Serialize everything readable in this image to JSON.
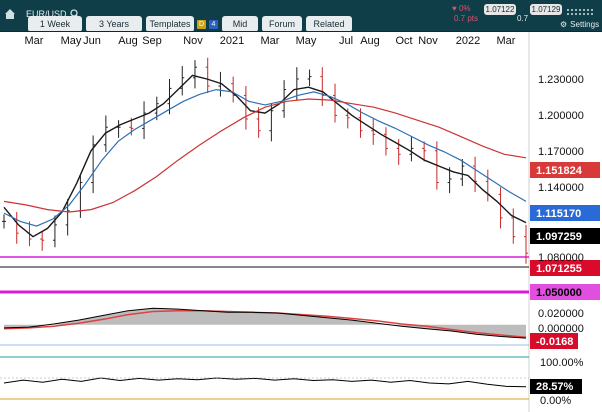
{
  "toolbar": {
    "symbol": "EUR/USD",
    "interval": "1 Week",
    "range": "3 Years",
    "templates": "Templates",
    "badge_d": "D",
    "badge_4": "4",
    "mid": "Mid",
    "forum": "Forum",
    "related": "Related",
    "change_pct": "♥ 0%",
    "change_pts": "0.7 pts",
    "sell_price": "1.07122",
    "spread": "0.7",
    "buy_price": "1.07129",
    "settings": "Settings",
    "colors": {
      "bar": "#0f3e49",
      "pill": "#e8eef0",
      "badge_d": "#c8a21a",
      "badge_4": "#2a62c4"
    }
  },
  "chart_data": [
    {
      "type": "line",
      "x_labels": [
        "Mar",
        "May",
        "Jun",
        "Aug",
        "Sep",
        "Nov",
        "2021",
        "Mar",
        "May",
        "Jul",
        "Aug",
        "Oct",
        "Nov",
        "2022",
        "Mar"
      ],
      "y_ticks": [
        "1.230000",
        "1.200000",
        "1.170000",
        "1.140000"
      ],
      "ylim": [
        1.055,
        1.247
      ],
      "series": [
        {
          "name": "",
          "color": "#000000",
          "values": [
            1.098,
            1.088,
            1.083,
            1.082,
            1.095,
            1.107,
            1.131,
            1.163,
            1.178,
            1.178,
            1.177,
            1.19,
            1.198,
            1.211,
            1.22,
            1.229,
            1.213,
            1.215,
            1.205,
            1.185,
            1.175,
            1.192,
            1.21,
            1.219,
            1.221,
            1.205,
            1.188,
            1.186,
            1.175,
            1.172,
            1.16,
            1.155,
            1.16,
            1.158,
            1.131,
            1.134,
            1.145,
            1.132,
            1.121,
            1.101,
            1.085,
            1.071
          ]
        },
        {
          "name": "",
          "color": "#1a1a1a",
          "values": [
            1.11,
            1.095,
            1.085,
            1.092,
            1.106,
            1.13,
            1.158,
            1.173,
            1.18,
            1.185,
            1.19,
            1.198,
            1.21,
            1.222,
            1.219,
            1.215,
            1.205,
            1.192,
            1.19,
            1.198,
            1.21,
            1.212,
            1.208,
            1.198,
            1.188,
            1.18,
            1.172,
            1.165,
            1.158,
            1.15,
            1.145,
            1.14,
            1.137,
            1.125,
            1.115,
            1.103,
            1.097
          ]
        },
        {
          "name": "",
          "color": "#2f6fb5",
          "values": [
            1.105,
            1.098,
            1.094,
            1.1,
            1.112,
            1.13,
            1.15,
            1.166,
            1.176,
            1.184,
            1.192,
            1.2,
            1.206,
            1.21,
            1.208,
            1.2,
            1.197,
            1.2,
            1.205,
            1.208,
            1.204,
            1.198,
            1.19,
            1.183,
            1.177,
            1.17,
            1.163,
            1.157,
            1.15,
            1.141,
            1.132,
            1.123,
            1.115
          ]
        },
        {
          "name": "",
          "color": "#cc3333",
          "values": [
            1.115,
            1.112,
            1.108,
            1.106,
            1.108,
            1.114,
            1.124,
            1.136,
            1.15,
            1.163,
            1.175,
            1.186,
            1.195,
            1.2,
            1.202,
            1.201,
            1.198,
            1.195,
            1.19,
            1.184,
            1.178,
            1.17,
            1.162,
            1.155,
            1.152
          ]
        }
      ],
      "horizontal_lines": [
        {
          "label": "1.080000",
          "value": 1.08,
          "color": "#d81bd8"
        },
        {
          "label": "1.050000",
          "value": 1.05,
          "color": "#d81bd8"
        }
      ],
      "price_tags": [
        {
          "label": "1.151824",
          "color": "#d83a3a",
          "text_color": "#ffffff"
        },
        {
          "label": "1.115170",
          "color": "#2a6ad6",
          "text_color": "#ffffff"
        },
        {
          "label": "1.097259",
          "color": "#000000",
          "text_color": "#ffffff"
        },
        {
          "label": "1.071255",
          "color": "#d80b2a",
          "text_color": "#ffffff"
        },
        {
          "label": "1.050000",
          "color": "#e04fe0",
          "text_color": "#000000"
        }
      ]
    },
    {
      "type": "area",
      "y_ticks": [
        "0.020000",
        "0.000000"
      ],
      "value_tag": {
        "label": "-0.0168",
        "color": "#d80b2a"
      },
      "series": [
        {
          "name": "",
          "color": "#000000",
          "values": [
            -0.004,
            -0.003,
            0.001,
            0.006,
            0.012,
            0.018,
            0.021,
            0.02,
            0.018,
            0.016,
            0.016,
            0.015,
            0.012,
            0.009,
            0.006,
            0.002,
            -0.002,
            -0.005,
            -0.008,
            -0.012,
            -0.015,
            -0.017
          ]
        },
        {
          "name": "",
          "color": "#e04040",
          "values": [
            -0.005,
            -0.004,
            -0.002,
            0.002,
            0.007,
            0.013,
            0.017,
            0.018,
            0.018,
            0.017,
            0.016,
            0.015,
            0.013,
            0.011,
            0.008,
            0.005,
            0.001,
            -0.002,
            -0.006,
            -0.01,
            -0.013,
            -0.016
          ]
        }
      ]
    },
    {
      "type": "line",
      "y_ticks": [
        "100.00%",
        "0.00%"
      ],
      "value_tag": {
        "label": "28.57%"
      },
      "series": [
        {
          "name": "",
          "color": "#000000",
          "values": [
            38,
            45,
            40,
            47,
            42,
            50,
            44,
            49,
            45,
            48,
            46,
            50,
            47,
            49,
            45,
            48,
            44,
            46,
            42,
            45,
            40,
            44,
            38,
            36,
            42,
            35,
            30,
            29
          ]
        }
      ]
    }
  ]
}
